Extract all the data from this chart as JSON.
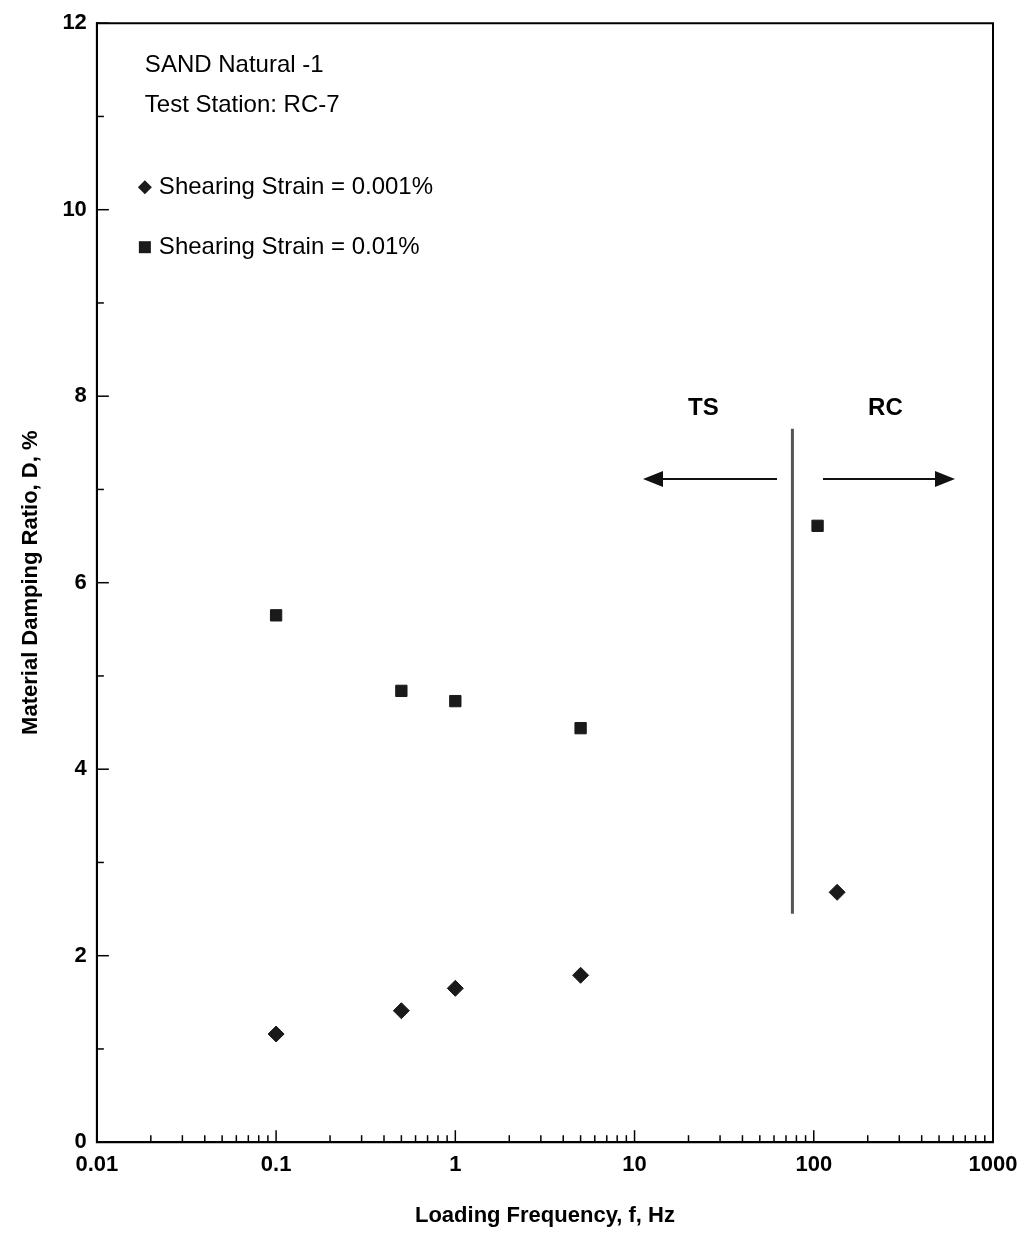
{
  "chart_data": {
    "type": "scatter",
    "xlabel": "Loading Frequency, f, Hz",
    "ylabel": "Material Damping Ratio, D, %",
    "log": "x",
    "grid": false,
    "legend": "top left",
    "xlim": [
      0.01,
      1000
    ],
    "ylim": [
      0,
      12
    ],
    "xticks": [
      0.01,
      {
        "value": 0.02,
        "label": null
      },
      {
        "value": 0.03,
        "label": null
      },
      {
        "value": 0.04,
        "label": null
      },
      {
        "value": 0.05,
        "label": null
      },
      {
        "value": 0.06,
        "label": null
      },
      {
        "value": 0.07,
        "label": null
      },
      {
        "value": 0.08,
        "label": null
      },
      {
        "value": 0.09,
        "label": null
      },
      0.1,
      {
        "value": 0.2,
        "label": null
      },
      {
        "value": 0.3,
        "label": null
      },
      {
        "value": 0.4,
        "label": null
      },
      {
        "value": 0.5,
        "label": null
      },
      {
        "value": 0.6,
        "label": null
      },
      {
        "value": 0.7,
        "label": null
      },
      {
        "value": 0.8,
        "label": null
      },
      {
        "value": 0.9,
        "label": null
      },
      1,
      {
        "value": 2,
        "label": null
      },
      {
        "value": 3,
        "label": null
      },
      {
        "value": 4,
        "label": null
      },
      {
        "value": 5,
        "label": null
      },
      {
        "value": 6,
        "label": null
      },
      {
        "value": 7,
        "label": null
      },
      {
        "value": 8,
        "label": null
      },
      {
        "value": 9,
        "label": null
      },
      10,
      {
        "value": 20,
        "label": null
      },
      {
        "value": 30,
        "label": null
      },
      {
        "value": 40,
        "label": null
      },
      {
        "value": 50,
        "label": null
      },
      {
        "value": 60,
        "label": null
      },
      {
        "value": 70,
        "label": null
      },
      {
        "value": 80,
        "label": null
      },
      {
        "value": 90,
        "label": null
      },
      100,
      {
        "value": 200,
        "label": null
      },
      {
        "value": 300,
        "label": null
      },
      {
        "value": 400,
        "label": null
      },
      {
        "value": 500,
        "label": null
      },
      {
        "value": 600,
        "label": null
      },
      {
        "value": 700,
        "label": null
      },
      {
        "value": 800,
        "label": null
      },
      {
        "value": 900,
        "label": null
      },
      1000
    ],
    "yticks": [
      0,
      {
        "value": 1,
        "label": null
      },
      2,
      {
        "value": 3,
        "label": null
      },
      4,
      {
        "value": 5,
        "label": null
      },
      6,
      {
        "value": 7,
        "label": null
      },
      8,
      {
        "value": 9,
        "label": null
      },
      10,
      {
        "value": 11,
        "label": null
      },
      12
    ],
    "series": [
      {
        "name": "Shearing Strain = 0.001%",
        "color": "#1a1a1a",
        "marker": "diamond",
        "x": [
          0.1,
          0.5,
          1,
          5,
          135
        ],
        "values": [
          1.16,
          1.41,
          1.65,
          1.79,
          2.68
        ]
      },
      {
        "name": "Shearing Strain = 0.01%",
        "color": "#1a1a1a",
        "marker": "square",
        "x": [
          0.1,
          0.5,
          1,
          5,
          105
        ],
        "values": [
          5.65,
          4.84,
          4.73,
          4.44,
          6.61
        ]
      },
      {
        "type": "line",
        "color": "#555555",
        "marker": "none",
        "x": [
          76,
          76
        ],
        "values": [
          2.45,
          7.65
        ]
      }
    ],
    "annotations": [
      "SAND Natural -1",
      "Test Station: RC-7",
      "TS",
      "RC"
    ]
  }
}
